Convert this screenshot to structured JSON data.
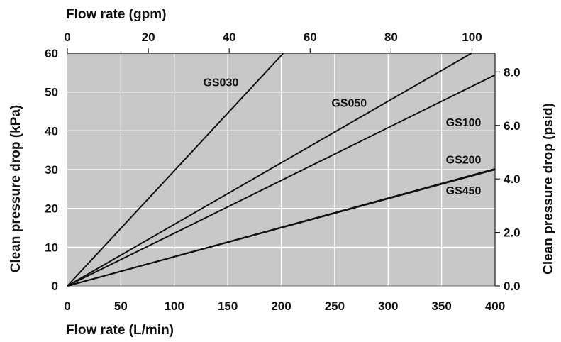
{
  "chart_data": {
    "type": "line",
    "title": "",
    "xlabel": "Flow rate (L/min)",
    "ylabel": "Clean pressure drop (kPa)",
    "xlim": [
      0,
      400
    ],
    "ylim": [
      0,
      60
    ],
    "x_ticks": [
      "0",
      "50",
      "100",
      "150",
      "200",
      "250",
      "300",
      "350",
      "400"
    ],
    "y_ticks": [
      "0",
      "10",
      "20",
      "30",
      "40",
      "50",
      "60"
    ],
    "secondary_x": {
      "label": "Flow rate (gpm)",
      "lim": [
        0,
        105.7
      ],
      "ticks": [
        "0",
        "20",
        "40",
        "60",
        "80",
        "100"
      ]
    },
    "secondary_y": {
      "label": "Clean pressure drop (psid)",
      "lim": [
        0,
        8.7
      ],
      "ticks": [
        "0.0",
        "2.0",
        "4.0",
        "6.0",
        "8.0"
      ]
    },
    "grid": true,
    "plot_background": "#c8c8c8",
    "grid_color": "#ffffff",
    "line_color": "#111111",
    "series": [
      {
        "name": "GS030",
        "x": [
          0,
          202
        ],
        "y": [
          0,
          60
        ]
      },
      {
        "name": "GS050",
        "x": [
          0,
          378
        ],
        "y": [
          0,
          60
        ]
      },
      {
        "name": "GS100",
        "x": [
          0,
          400
        ],
        "y": [
          0,
          54.4
        ]
      },
      {
        "name": "GS200",
        "x": [
          0,
          400
        ],
        "y": [
          0,
          30.2
        ]
      },
      {
        "name": "GS450",
        "x": [
          0,
          400
        ],
        "y": [
          0,
          30.0
        ]
      }
    ]
  }
}
